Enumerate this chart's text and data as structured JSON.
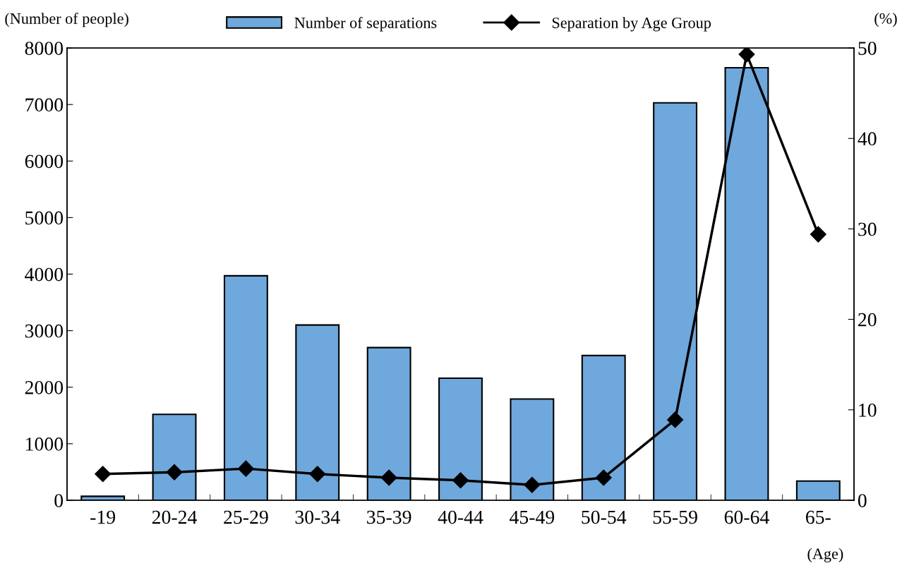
{
  "chart_data": {
    "type": "bar",
    "categories": [
      "-19",
      "20-24",
      "25-29",
      "30-34",
      "35-39",
      "40-44",
      "45-49",
      "50-54",
      "55-59",
      "60-64",
      "65-"
    ],
    "series": [
      {
        "name": "Number of separations",
        "color": "#6fa8dc",
        "values": [
          70,
          1520,
          3970,
          3100,
          2700,
          2160,
          1790,
          2560,
          7030,
          7650,
          340
        ]
      },
      {
        "name": "Separation by Age Group",
        "type": "line",
        "axis": "y2",
        "color": "#000000",
        "marker": "diamond",
        "values": [
          2.9,
          3.1,
          3.5,
          2.9,
          2.5,
          2.2,
          1.7,
          2.5,
          8.9,
          49.3,
          29.4
        ]
      }
    ],
    "ylim": [
      0,
      8000
    ],
    "yticks": [
      0,
      1000,
      2000,
      3000,
      4000,
      5000,
      6000,
      7000,
      8000
    ],
    "y2lim": [
      0,
      50
    ],
    "y2ticks": [
      0,
      10,
      20,
      30,
      40,
      50
    ],
    "annotations": [
      "(Number of people)",
      "(%)",
      "(Age)"
    ],
    "legend": "top",
    "grid": false
  }
}
